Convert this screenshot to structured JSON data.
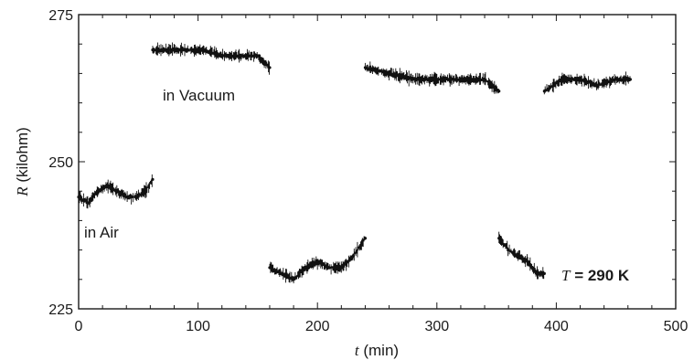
{
  "chart_data": {
    "type": "scatter",
    "title": "",
    "xlabel": {
      "var": "t",
      "unit": " (min)"
    },
    "ylabel": {
      "var": "R",
      "unit": " (kilohm)"
    },
    "xlim": [
      0,
      500
    ],
    "ylim": [
      225,
      275
    ],
    "xticks": [
      0,
      100,
      200,
      300,
      400,
      500
    ],
    "yticks": [
      225,
      250,
      275
    ],
    "grid": false,
    "annotations": {
      "air": "in Air",
      "vacuum": "in Vacuum",
      "temperature_var": "T",
      "temperature_value": " = 290 K"
    },
    "segments": [
      {
        "environment": "air",
        "x": [
          0,
          8,
          16,
          24,
          32,
          40,
          48,
          56,
          62
        ],
        "y": [
          244,
          243,
          245,
          246,
          245,
          244,
          244,
          245,
          247
        ]
      },
      {
        "environment": "vacuum",
        "x": [
          62,
          75,
          90,
          105,
          120,
          135,
          150,
          160
        ],
        "y": [
          269,
          269,
          269,
          269,
          268,
          268,
          268,
          266
        ]
      },
      {
        "environment": "air",
        "x": [
          160,
          170,
          180,
          190,
          200,
          210,
          220,
          230,
          240
        ],
        "y": [
          232,
          231,
          230,
          232,
          233,
          232,
          232,
          234,
          237
        ]
      },
      {
        "environment": "vacuum",
        "x": [
          240,
          260,
          280,
          300,
          320,
          340,
          352
        ],
        "y": [
          266,
          265,
          264,
          264,
          264,
          264,
          262
        ]
      },
      {
        "environment": "air",
        "x": [
          352,
          360,
          368,
          376,
          384,
          390
        ],
        "y": [
          237,
          235,
          234,
          233,
          231,
          231
        ]
      },
      {
        "environment": "vacuum",
        "x": [
          390,
          405,
          420,
          435,
          450,
          462
        ],
        "y": [
          262,
          264,
          264,
          263,
          264,
          264
        ]
      }
    ]
  }
}
